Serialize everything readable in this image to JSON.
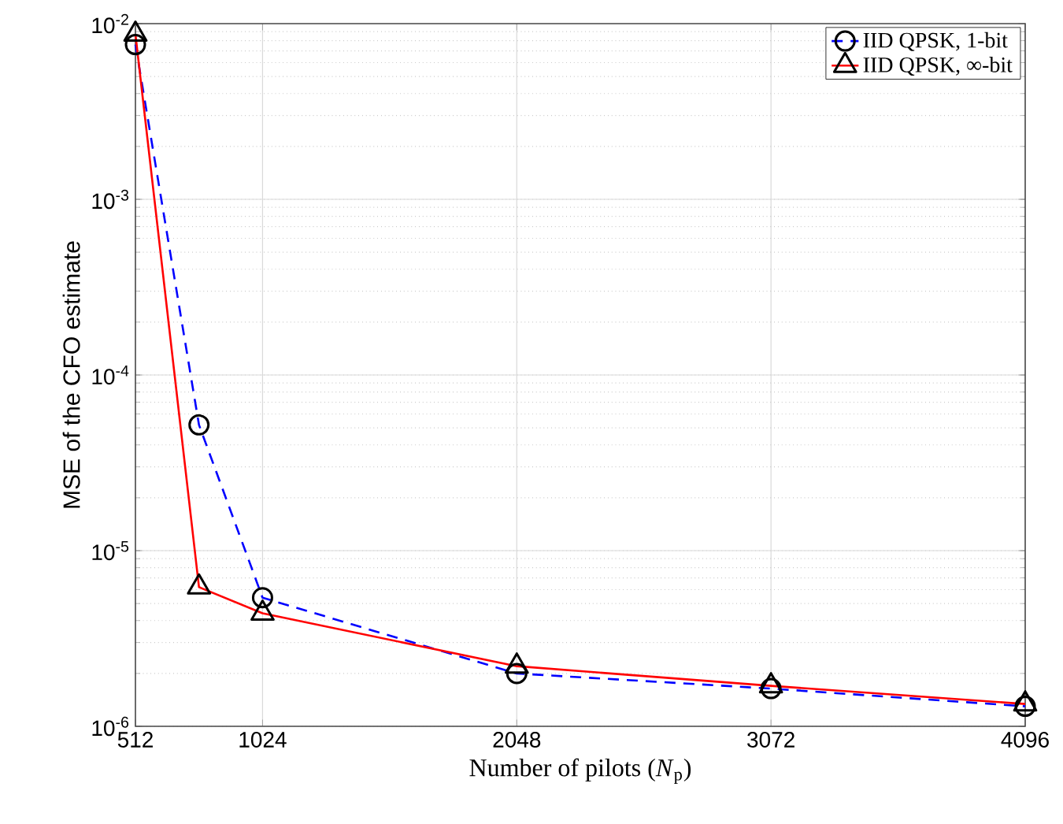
{
  "chart_data": {
    "type": "line",
    "xlabel": "Number of pilots (*N*$_{p}$)",
    "ylabel": "MSE of the CFO estimate",
    "x": [
      512,
      768,
      1024,
      2048,
      3072,
      4096
    ],
    "series": [
      {
        "name": "IID QPSK, 1-bit",
        "color": "#0000ff",
        "marker": "circle",
        "line_style": "dashed",
        "values": [
          0.0076,
          5.2e-05,
          5.4e-06,
          2e-06,
          1.64e-06,
          1.3e-06
        ]
      },
      {
        "name": "IID QPSK, ∞-bit",
        "color": "#ff0000",
        "marker": "triangle",
        "line_style": "solid",
        "values": [
          0.0087,
          6.2e-06,
          4.4e-06,
          2.2e-06,
          1.7e-06,
          1.34e-06
        ]
      }
    ],
    "log": "y",
    "grid": true,
    "legend": "top right",
    "xlim": [
      512,
      4096
    ],
    "xticks": [
      512,
      1024,
      2048,
      3072,
      4096
    ],
    "ylim": [
      1e-06,
      0.01
    ],
    "yticks": [
      {
        "value": 1e-06,
        "label": "10$^{-6}$"
      },
      {
        "value": 1e-05,
        "label": "10$^{-5}$"
      },
      {
        "value": 0.0001,
        "label": "10$^{-4}$"
      },
      {
        "value": 0.001,
        "label": "10$^{-3}$"
      },
      {
        "value": 0.01,
        "label": "10$^{-2}$"
      }
    ]
  }
}
